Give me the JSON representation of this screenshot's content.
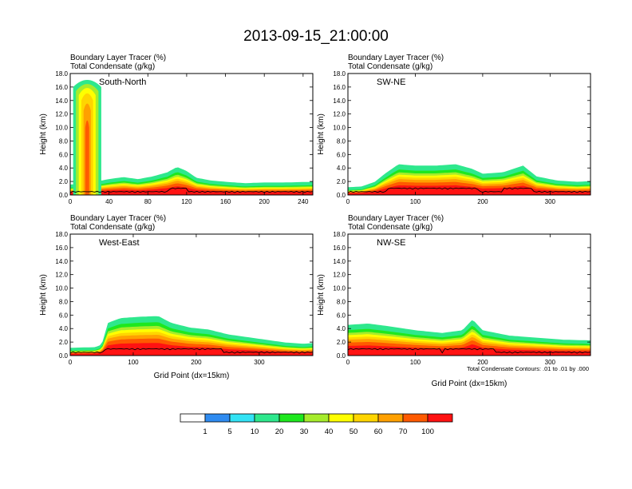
{
  "figure": {
    "title": "2013-09-15_21:00:00",
    "footnote": "Total Condensate Contours: .01 to .01 by .000"
  },
  "colorbar": {
    "colors": [
      "#ffffff",
      "#2f8bf0",
      "#33e3f5",
      "#2ee88d",
      "#1ee81e",
      "#a6ec2c",
      "#ffff00",
      "#ffd500",
      "#ffa000",
      "#ff5a00",
      "#ff1212"
    ],
    "labels": [
      "1",
      "5",
      "10",
      "20",
      "30",
      "40",
      "50",
      "60",
      "70",
      "100"
    ]
  },
  "chart_data": [
    {
      "type": "heatmap",
      "panel": "South-North",
      "subtitle_lines": [
        "Boundary Layer Tracer   (%)",
        "Total Condensate   (g/kg)"
      ],
      "xlabel": "",
      "ylabel": "Height (km)",
      "xlim": [
        0,
        250
      ],
      "ylim": [
        0,
        18
      ],
      "x_ticks": [
        "0",
        "40",
        "80",
        "120",
        "160",
        "200",
        "240"
      ],
      "y_ticks": [
        "0.0",
        "2.0",
        "4.0",
        "6.0",
        "8.0",
        "10.0",
        "12.0",
        "14.0",
        "16.0",
        "18.0"
      ],
      "pbl_top_km": [
        [
          0,
          1.2
        ],
        [
          10,
          1.3
        ],
        [
          25,
          1.6
        ],
        [
          40,
          2.0
        ],
        [
          55,
          2.3
        ],
        [
          70,
          2.0
        ],
        [
          85,
          2.4
        ],
        [
          100,
          3.0
        ],
        [
          110,
          3.8
        ],
        [
          120,
          3.2
        ],
        [
          130,
          2.2
        ],
        [
          145,
          1.8
        ],
        [
          160,
          1.6
        ],
        [
          180,
          1.4
        ],
        [
          200,
          1.5
        ],
        [
          220,
          1.5
        ],
        [
          250,
          1.6
        ]
      ],
      "deep_plume": {
        "x_range": [
          3,
          32
        ],
        "top_km": 17.5
      }
    },
    {
      "type": "heatmap",
      "panel": "SW-NE",
      "subtitle_lines": [
        "Boundary Layer Tracer   (%)",
        "Total Condensate   (g/kg)"
      ],
      "xlabel": "",
      "ylabel": "Height (km)",
      "xlim": [
        0,
        360
      ],
      "ylim": [
        0,
        18
      ],
      "x_ticks": [
        "0",
        "100",
        "200",
        "300"
      ],
      "y_ticks": [
        "0.0",
        "2.0",
        "4.0",
        "6.0",
        "8.0",
        "10.0",
        "12.0",
        "14.0",
        "16.0",
        "18.0"
      ],
      "pbl_top_km": [
        [
          0,
          0.8
        ],
        [
          20,
          0.9
        ],
        [
          40,
          1.6
        ],
        [
          55,
          2.8
        ],
        [
          75,
          4.2
        ],
        [
          100,
          4.0
        ],
        [
          130,
          4.0
        ],
        [
          160,
          4.2
        ],
        [
          185,
          3.5
        ],
        [
          200,
          2.8
        ],
        [
          230,
          3.0
        ],
        [
          260,
          4.0
        ],
        [
          280,
          2.4
        ],
        [
          310,
          1.8
        ],
        [
          340,
          1.6
        ],
        [
          360,
          1.7
        ]
      ]
    },
    {
      "type": "heatmap",
      "panel": "West-East",
      "subtitle_lines": [
        "Boundary Layer Tracer   (%)",
        "Total Condensate   (g/kg)"
      ],
      "xlabel": "Grid Point (dx=15km)",
      "ylabel": "Height (km)",
      "xlim": [
        0,
        385
      ],
      "ylim": [
        0,
        18
      ],
      "x_ticks": [
        "0",
        "100",
        "200",
        "300"
      ],
      "y_ticks": [
        "0.0",
        "2.0",
        "4.0",
        "6.0",
        "8.0",
        "10.0",
        "12.0",
        "14.0",
        "16.0",
        "18.0"
      ],
      "pbl_top_km": [
        [
          0,
          0.8
        ],
        [
          40,
          0.9
        ],
        [
          50,
          1.3
        ],
        [
          60,
          4.5
        ],
        [
          80,
          5.2
        ],
        [
          110,
          5.4
        ],
        [
          140,
          5.5
        ],
        [
          160,
          4.5
        ],
        [
          190,
          3.8
        ],
        [
          220,
          3.5
        ],
        [
          250,
          2.8
        ],
        [
          280,
          2.4
        ],
        [
          310,
          2.0
        ],
        [
          340,
          1.6
        ],
        [
          370,
          1.4
        ],
        [
          385,
          1.5
        ]
      ]
    },
    {
      "type": "heatmap",
      "panel": "NW-SE",
      "subtitle_lines": [
        "Boundary Layer Tracer   (%)",
        "Total Condensate   (g/kg)"
      ],
      "xlabel": "Grid Point (dx=15km)",
      "ylabel": "Height (km)",
      "xlim": [
        0,
        360
      ],
      "ylim": [
        0,
        18
      ],
      "x_ticks": [
        "0",
        "100",
        "200",
        "300"
      ],
      "y_ticks": [
        "0.0",
        "2.0",
        "4.0",
        "6.0",
        "8.0",
        "10.0",
        "12.0",
        "14.0",
        "16.0",
        "18.0"
      ],
      "pbl_top_km": [
        [
          0,
          4.2
        ],
        [
          30,
          4.4
        ],
        [
          60,
          4.0
        ],
        [
          100,
          3.4
        ],
        [
          140,
          3.0
        ],
        [
          170,
          3.4
        ],
        [
          185,
          5.0
        ],
        [
          200,
          3.4
        ],
        [
          240,
          2.6
        ],
        [
          280,
          2.3
        ],
        [
          320,
          2.0
        ],
        [
          360,
          1.9
        ]
      ]
    }
  ]
}
